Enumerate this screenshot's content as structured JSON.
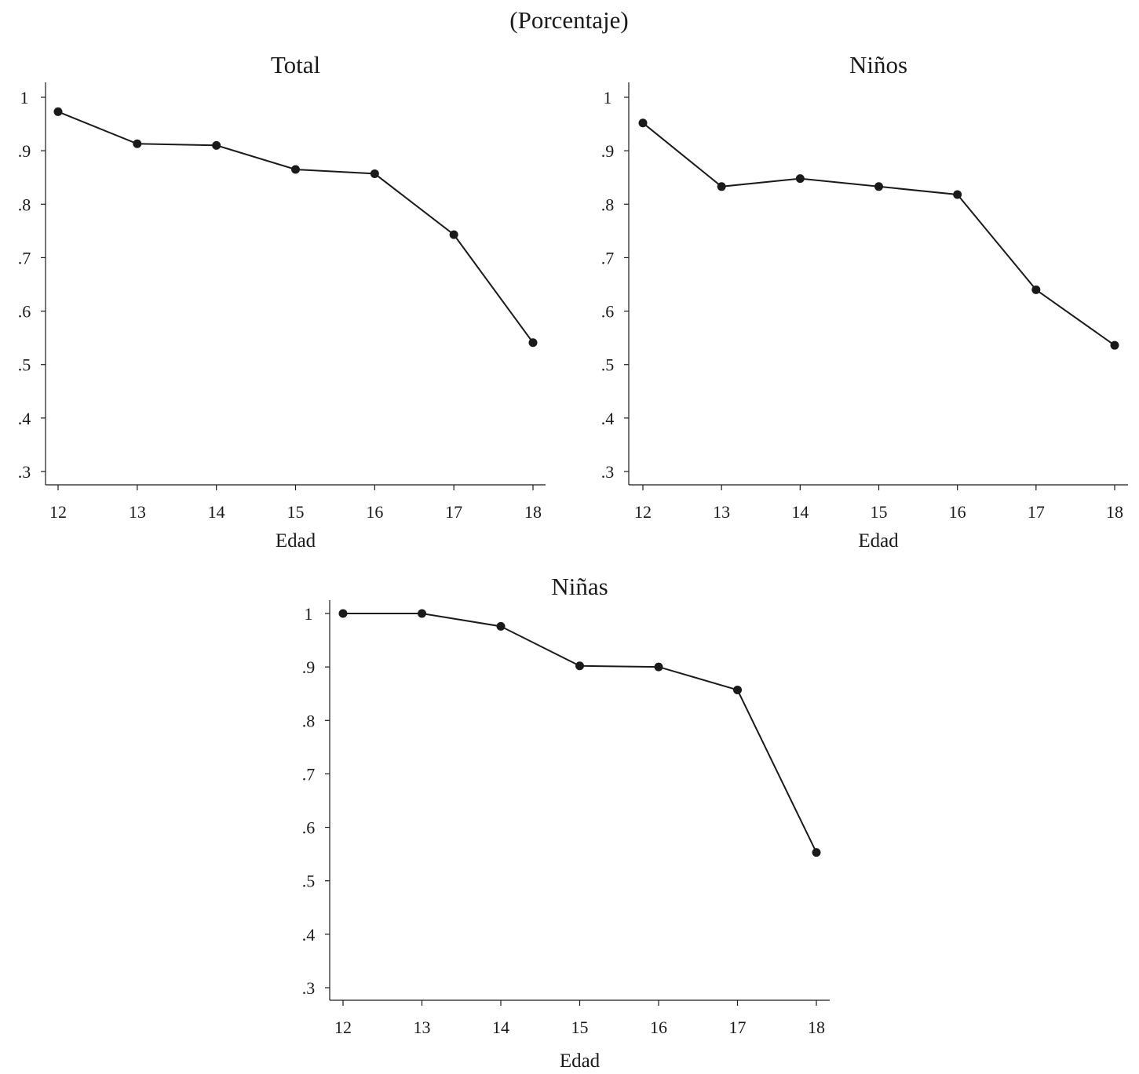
{
  "figure": {
    "subtitle": "(Porcentaje)"
  },
  "chart_data": [
    {
      "type": "line",
      "title": "Total",
      "xlabel": "Edad",
      "ylabel": "",
      "x": [
        12,
        13,
        14,
        15,
        16,
        17,
        18
      ],
      "values": [
        0.973,
        0.913,
        0.91,
        0.865,
        0.857,
        0.743,
        0.541
      ],
      "ylim": [
        0.3,
        1.0
      ],
      "yticks": [
        1.0,
        0.9,
        0.8,
        0.7,
        0.6,
        0.5,
        0.4,
        0.3
      ],
      "ytick_labels": [
        "1",
        ".9",
        ".8",
        ".7",
        ".6",
        ".5",
        ".4",
        ".3"
      ],
      "xticks": [
        12,
        13,
        14,
        15,
        16,
        17,
        18
      ],
      "xtick_labels": [
        "12",
        "13",
        "14",
        "15",
        "16",
        "17",
        "18"
      ],
      "grid": false
    },
    {
      "type": "line",
      "title": "Niños",
      "xlabel": "Edad",
      "ylabel": "",
      "x": [
        12,
        13,
        14,
        15,
        16,
        17,
        18
      ],
      "values": [
        0.952,
        0.833,
        0.848,
        0.833,
        0.818,
        0.64,
        0.536
      ],
      "ylim": [
        0.3,
        1.0
      ],
      "yticks": [
        1.0,
        0.9,
        0.8,
        0.7,
        0.6,
        0.5,
        0.4,
        0.3
      ],
      "ytick_labels": [
        "1",
        ".9",
        ".8",
        ".7",
        ".6",
        ".5",
        ".4",
        ".3"
      ],
      "xticks": [
        12,
        13,
        14,
        15,
        16,
        17,
        18
      ],
      "xtick_labels": [
        "12",
        "13",
        "14",
        "15",
        "16",
        "17",
        "18"
      ],
      "grid": false
    },
    {
      "type": "line",
      "title": "Niñas",
      "xlabel": "Edad",
      "ylabel": "",
      "x": [
        12,
        13,
        14,
        15,
        16,
        17,
        18
      ],
      "values": [
        1.0,
        1.0,
        0.976,
        0.902,
        0.9,
        0.857,
        0.553
      ],
      "ylim": [
        0.3,
        1.0
      ],
      "yticks": [
        1.0,
        0.9,
        0.8,
        0.7,
        0.6,
        0.5,
        0.4,
        0.3
      ],
      "ytick_labels": [
        "1",
        ".9",
        ".8",
        ".7",
        ".6",
        ".5",
        ".4",
        ".3"
      ],
      "xticks": [
        12,
        13,
        14,
        15,
        16,
        17,
        18
      ],
      "xtick_labels": [
        "12",
        "13",
        "14",
        "15",
        "16",
        "17",
        "18"
      ],
      "grid": false
    }
  ]
}
